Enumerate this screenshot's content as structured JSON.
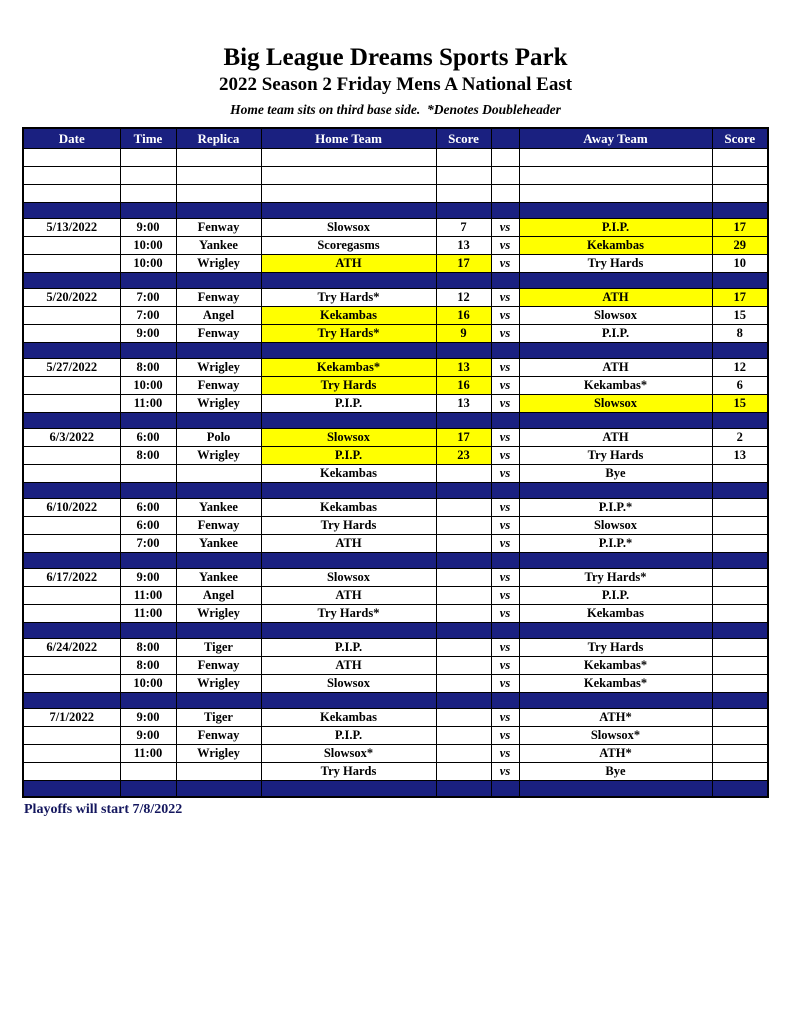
{
  "page": {
    "title": "Big League Dreams Sports Park",
    "subtitle": "2022 Season 2 Friday Mens A National East",
    "note": "Home team sits on third base side.  *Denotes Doubleheader",
    "footer": "Playoffs will start 7/8/2022"
  },
  "colors": {
    "navy": "#1A2080",
    "yellow": "#FFFF00",
    "footer_text": "#14175E"
  },
  "table": {
    "headers": [
      "Date",
      "Time",
      "Replica",
      "Home Team",
      "Score",
      "",
      "Away Team",
      "Score"
    ],
    "vs_label": "vs",
    "rows": [
      {
        "type": "empty"
      },
      {
        "type": "empty"
      },
      {
        "type": "empty"
      },
      {
        "type": "separator"
      },
      {
        "type": "game",
        "date": "5/13/2022",
        "time": "9:00",
        "replica": "Fenway",
        "home": "Slowsox",
        "home_score": "7",
        "away": "P.I.P.",
        "away_score": "17",
        "away_win": true
      },
      {
        "type": "game",
        "date": "",
        "time": "10:00",
        "replica": "Yankee",
        "home": "Scoregasms",
        "home_score": "13",
        "away": "Kekambas",
        "away_score": "29",
        "away_win": true
      },
      {
        "type": "game",
        "date": "",
        "time": "10:00",
        "replica": "Wrigley",
        "home": "ATH",
        "home_score": "17",
        "away": "Try Hards",
        "away_score": "10",
        "home_win": true
      },
      {
        "type": "separator"
      },
      {
        "type": "game",
        "date": "5/20/2022",
        "time": "7:00",
        "replica": "Fenway",
        "home": "Try Hards*",
        "home_score": "12",
        "away": "ATH",
        "away_score": "17",
        "away_win": true
      },
      {
        "type": "game",
        "date": "",
        "time": "7:00",
        "replica": "Angel",
        "home": "Kekambas",
        "home_score": "16",
        "away": "Slowsox",
        "away_score": "15",
        "home_win": true
      },
      {
        "type": "game",
        "date": "",
        "time": "9:00",
        "replica": "Fenway",
        "home": "Try Hards*",
        "home_score": "9",
        "away": "P.I.P.",
        "away_score": "8",
        "home_win": true
      },
      {
        "type": "separator"
      },
      {
        "type": "game",
        "date": "5/27/2022",
        "time": "8:00",
        "replica": "Wrigley",
        "home": "Kekambas*",
        "home_score": "13",
        "away": "ATH",
        "away_score": "12",
        "home_win": true
      },
      {
        "type": "game",
        "date": "",
        "time": "10:00",
        "replica": "Fenway",
        "home": "Try Hards",
        "home_score": "16",
        "away": "Kekambas*",
        "away_score": "6",
        "home_win": true
      },
      {
        "type": "game",
        "date": "",
        "time": "11:00",
        "replica": "Wrigley",
        "home": "P.I.P.",
        "home_score": "13",
        "away": "Slowsox",
        "away_score": "15",
        "away_win": true
      },
      {
        "type": "separator"
      },
      {
        "type": "game",
        "date": "6/3/2022",
        "time": "6:00",
        "replica": "Polo",
        "home": "Slowsox",
        "home_score": "17",
        "away": "ATH",
        "away_score": "2",
        "home_win": true
      },
      {
        "type": "game",
        "date": "",
        "time": "8:00",
        "replica": "Wrigley",
        "home": "P.I.P.",
        "home_score": "23",
        "away": "Try Hards",
        "away_score": "13",
        "home_win": true
      },
      {
        "type": "game",
        "date": "",
        "time": "",
        "replica": "",
        "home": "Kekambas",
        "home_score": "",
        "away": "Bye",
        "away_score": ""
      },
      {
        "type": "separator"
      },
      {
        "type": "game",
        "date": "6/10/2022",
        "time": "6:00",
        "replica": "Yankee",
        "home": "Kekambas",
        "home_score": "",
        "away": "P.I.P.*",
        "away_score": ""
      },
      {
        "type": "game",
        "date": "",
        "time": "6:00",
        "replica": "Fenway",
        "home": "Try Hards",
        "home_score": "",
        "away": "Slowsox",
        "away_score": ""
      },
      {
        "type": "game",
        "date": "",
        "time": "7:00",
        "replica": "Yankee",
        "home": "ATH",
        "home_score": "",
        "away": "P.I.P.*",
        "away_score": ""
      },
      {
        "type": "separator"
      },
      {
        "type": "game",
        "date": "6/17/2022",
        "time": "9:00",
        "replica": "Yankee",
        "home": "Slowsox",
        "home_score": "",
        "away": "Try Hards*",
        "away_score": ""
      },
      {
        "type": "game",
        "date": "",
        "time": "11:00",
        "replica": "Angel",
        "home": "ATH",
        "home_score": "",
        "away": "P.I.P.",
        "away_score": ""
      },
      {
        "type": "game",
        "date": "",
        "time": "11:00",
        "replica": "Wrigley",
        "home": "Try Hards*",
        "home_score": "",
        "away": "Kekambas",
        "away_score": ""
      },
      {
        "type": "separator"
      },
      {
        "type": "game",
        "date": "6/24/2022",
        "time": "8:00",
        "replica": "Tiger",
        "home": "P.I.P.",
        "home_score": "",
        "away": "Try Hards",
        "away_score": ""
      },
      {
        "type": "game",
        "date": "",
        "time": "8:00",
        "replica": "Fenway",
        "home": "ATH",
        "home_score": "",
        "away": "Kekambas*",
        "away_score": ""
      },
      {
        "type": "game",
        "date": "",
        "time": "10:00",
        "replica": "Wrigley",
        "home": "Slowsox",
        "home_score": "",
        "away": "Kekambas*",
        "away_score": ""
      },
      {
        "type": "separator"
      },
      {
        "type": "game",
        "date": "7/1/2022",
        "time": "9:00",
        "replica": "Tiger",
        "home": "Kekambas",
        "home_score": "",
        "away": "ATH*",
        "away_score": ""
      },
      {
        "type": "game",
        "date": "",
        "time": "9:00",
        "replica": "Fenway",
        "home": "P.I.P.",
        "home_score": "",
        "away": "Slowsox*",
        "away_score": ""
      },
      {
        "type": "game",
        "date": "",
        "time": "11:00",
        "replica": "Wrigley",
        "home": "Slowsox*",
        "home_score": "",
        "away": "ATH*",
        "away_score": ""
      },
      {
        "type": "game",
        "date": "",
        "time": "",
        "replica": "",
        "home": "Try Hards",
        "home_score": "",
        "away": "Bye",
        "away_score": ""
      },
      {
        "type": "separator"
      }
    ]
  }
}
